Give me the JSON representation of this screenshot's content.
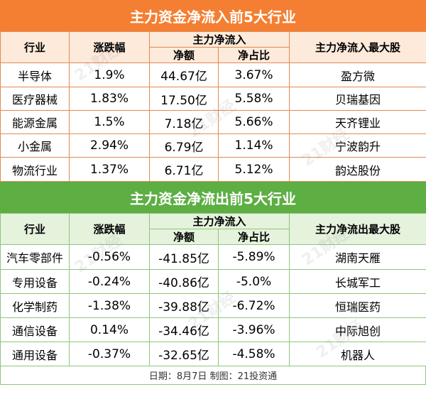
{
  "inflow": {
    "title": "主力资金净流入前5大行业",
    "headers": {
      "industry": "行业",
      "change": "涨跌幅",
      "group": "主力净流入",
      "amount": "净额",
      "ratio": "净占比",
      "top_stock": "主力净流入最大股"
    },
    "rows": [
      {
        "industry": "半导体",
        "change": "1.9%",
        "amount": "44.67亿",
        "ratio": "3.67%",
        "stock": "盈方微"
      },
      {
        "industry": "医疗器械",
        "change": "1.83%",
        "amount": "17.50亿",
        "ratio": "5.58%",
        "stock": "贝瑞基因"
      },
      {
        "industry": "能源金属",
        "change": "1.5%",
        "amount": "7.18亿",
        "ratio": "5.66%",
        "stock": "天齐锂业"
      },
      {
        "industry": "小金属",
        "change": "2.94%",
        "amount": "6.79亿",
        "ratio": "1.14%",
        "stock": "宁波韵升"
      },
      {
        "industry": "物流行业",
        "change": "1.37%",
        "amount": "6.71亿",
        "ratio": "5.12%",
        "stock": "韵达股份"
      }
    ]
  },
  "outflow": {
    "title": "主力资金净流出前5大行业",
    "headers": {
      "industry": "行业",
      "change": "涨跌幅",
      "group": "主力净流入",
      "amount": "净额",
      "ratio": "净占比",
      "top_stock": "主力净流出最大股"
    },
    "rows": [
      {
        "industry": "汽车零部件",
        "change": "-0.56%",
        "amount": "-41.85亿",
        "ratio": "-5.89%",
        "stock": "湖南天雁"
      },
      {
        "industry": "专用设备",
        "change": "-0.24%",
        "amount": "-40.86亿",
        "ratio": "-5.0%",
        "stock": "长城军工"
      },
      {
        "industry": "化学制药",
        "change": "-1.38%",
        "amount": "-39.88亿",
        "ratio": "-6.72%",
        "stock": "恒瑞医药"
      },
      {
        "industry": "通信设备",
        "change": "0.14%",
        "amount": "-34.46亿",
        "ratio": "-3.96%",
        "stock": "中际旭创"
      },
      {
        "industry": "通用设备",
        "change": "-0.37%",
        "amount": "-32.65亿",
        "ratio": "-4.58%",
        "stock": "机器人"
      }
    ]
  },
  "footer": "日期：8月7日 制图：21投资通",
  "watermark": "21财经",
  "colors": {
    "inflow_accent": "#f47f32",
    "outflow_accent": "#5dae43"
  }
}
